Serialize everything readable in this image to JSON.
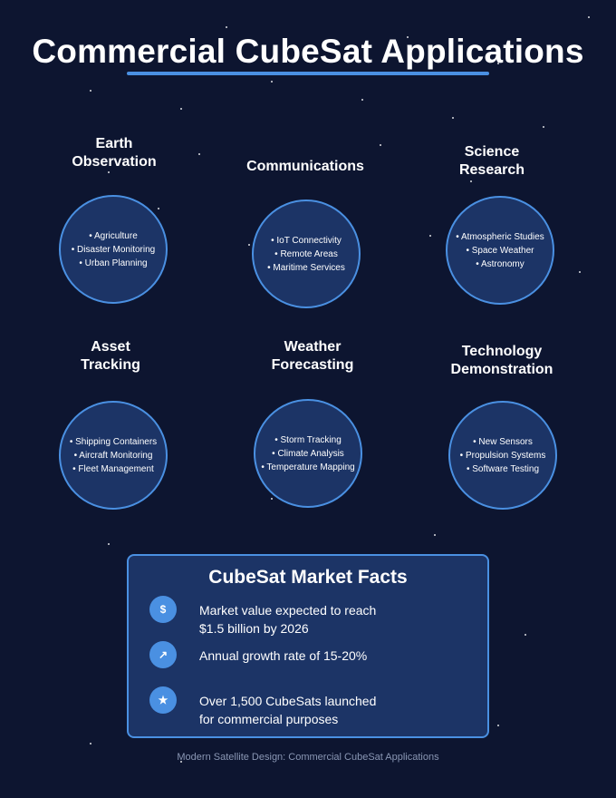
{
  "title": "Commercial CubeSat Applications",
  "colors": {
    "background": "#0d1530",
    "accent": "#4a90e2",
    "panel": "#1c3466"
  },
  "applications": [
    {
      "title_lines": [
        "Earth",
        "Observation"
      ],
      "items": [
        "• Agriculture",
        "• Disaster Monitoring",
        "• Urban Planning"
      ]
    },
    {
      "title_lines": [
        "Communications"
      ],
      "items": [
        "• IoT Connectivity",
        "• Remote Areas",
        "• Maritime Services"
      ]
    },
    {
      "title_lines": [
        "Science",
        "Research"
      ],
      "items": [
        "• Atmospheric Studies",
        "• Space Weather",
        "• Astronomy"
      ]
    },
    {
      "title_lines": [
        "Asset",
        "Tracking"
      ],
      "items": [
        "• Shipping Containers",
        "• Aircraft Monitoring",
        "• Fleet Management"
      ]
    },
    {
      "title_lines": [
        "Weather",
        "Forecasting"
      ],
      "items": [
        "• Storm Tracking",
        "• Climate Analysis",
        "• Temperature Mapping"
      ]
    },
    {
      "title_lines": [
        "Technology",
        "Demonstration"
      ],
      "items": [
        "• New Sensors",
        "• Propulsion Systems",
        "• Software Testing"
      ]
    }
  ],
  "facts": {
    "title": "CubeSat Market Facts",
    "items": [
      {
        "icon": "$",
        "icon_name": "dollar-icon",
        "lines": [
          "Market value expected to reach",
          "$1.5 billion by 2026"
        ]
      },
      {
        "icon": "↗",
        "icon_name": "growth-arrow-icon",
        "lines": [
          "Annual growth rate of 15-20%"
        ]
      },
      {
        "icon": "★",
        "icon_name": "star-icon",
        "lines": [
          "Over 1,500 CubeSats launched",
          "for commercial purposes"
        ]
      }
    ]
  },
  "footer": "Modern Satellite Design: Commercial CubeSat Applications"
}
